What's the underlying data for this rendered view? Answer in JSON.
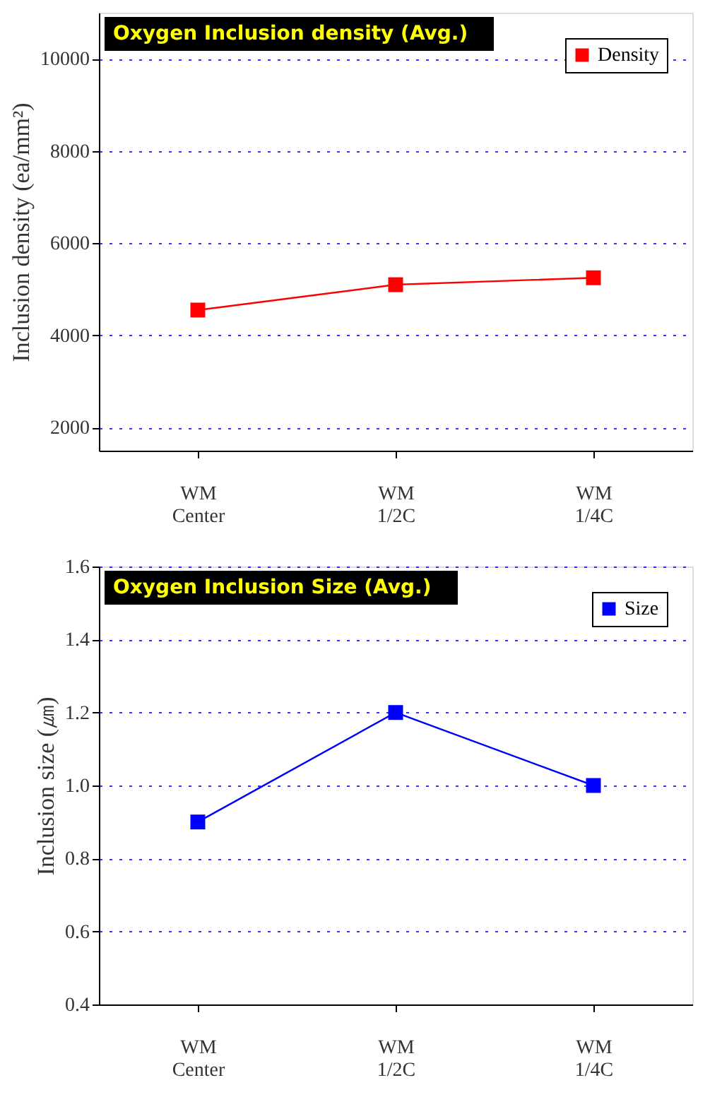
{
  "chart_data": [
    {
      "type": "line",
      "title": "Oxygen Inclusion density (Avg.)",
      "ylabel": "Inclusion density (ea/mm²)",
      "categories": [
        "WM\nCenter",
        "WM\n1/2C",
        "WM\n1/4C"
      ],
      "series": [
        {
          "name": "Density",
          "color": "#ff0000",
          "values": [
            4550,
            5100,
            5250
          ]
        }
      ],
      "ylim": [
        1500,
        11000
      ],
      "yticks": [
        2000,
        4000,
        6000,
        8000,
        10000
      ],
      "grid": "y",
      "legend": "top right",
      "marker": "square",
      "line_style": "solid"
    },
    {
      "type": "line",
      "title": "Oxygen Inclusion Size (Avg.)",
      "ylabel": "Inclusion size (㎛)",
      "categories": [
        "WM\nCenter",
        "WM\n1/2C",
        "WM\n1/4C"
      ],
      "series": [
        {
          "name": "Size",
          "color": "#0000ff",
          "values": [
            0.9,
            1.2,
            1.0
          ]
        }
      ],
      "ylim": [
        0.4,
        1.6
      ],
      "yticks": [
        0.4,
        0.6,
        0.8,
        {
          "value": 1,
          "label": "1.0"
        },
        1.2,
        1.4,
        1.6
      ],
      "grid": "y",
      "legend": "top right",
      "marker": "square",
      "line_style": "solid"
    }
  ]
}
